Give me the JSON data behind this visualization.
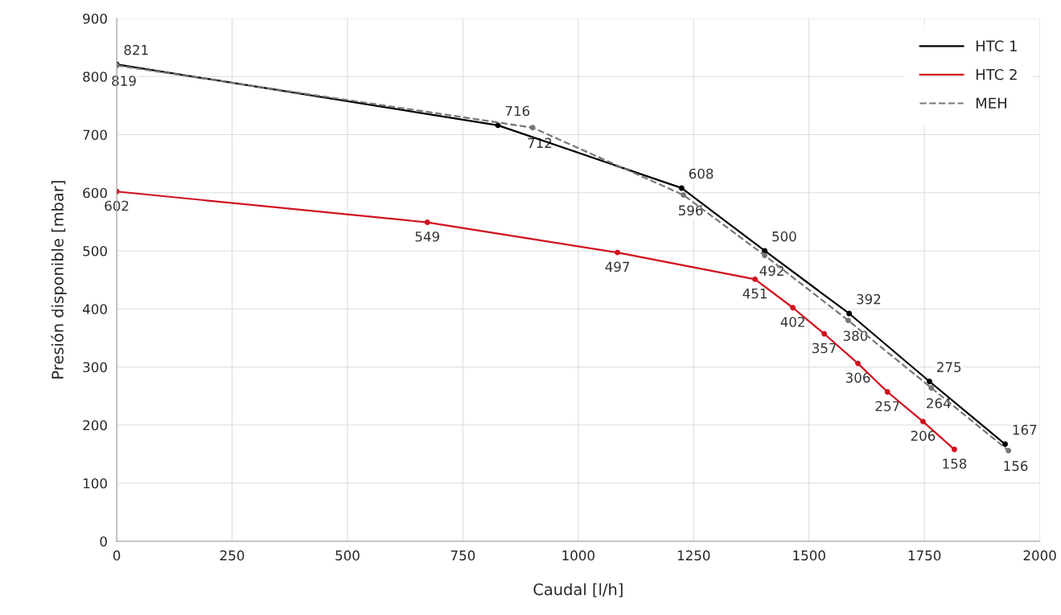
{
  "chart_data": {
    "type": "line",
    "xlabel": "Caudal [l/h]",
    "ylabel": "Presión disponible [mbar]",
    "xlim": [
      0,
      2000
    ],
    "xticks": [
      0,
      250,
      500,
      750,
      1000,
      1250,
      1500,
      1750,
      2000
    ],
    "ylim": [
      0,
      900
    ],
    "yticks": [
      0,
      100,
      200,
      300,
      400,
      500,
      600,
      700,
      800,
      900
    ],
    "grid": true,
    "legend": "top right",
    "marker": "circle",
    "data_labels": true,
    "series": [
      {
        "name": "HTC 1",
        "color": "#000000",
        "line_style": "solid",
        "x": [
          0,
          826,
          1224,
          1404,
          1587,
          1761,
          1925
        ],
        "values": [
          821,
          716,
          608,
          500,
          392,
          275,
          167
        ]
      },
      {
        "name": "HTC 2",
        "color": "#d0101e",
        "line_style": "solid",
        "x": [
          0,
          673,
          1085,
          1383,
          1465,
          1533,
          1606,
          1670,
          1747,
          1815
        ],
        "values": [
          602,
          549,
          497,
          451,
          402,
          357,
          306,
          257,
          206,
          158
        ]
      },
      {
        "name": "MEH",
        "color": "#777777",
        "line_style": "dashed",
        "x": [
          0,
          901,
          1228,
          1404,
          1585,
          1765,
          1932
        ],
        "values": [
          819,
          712,
          596,
          492,
          380,
          264,
          156
        ]
      }
    ]
  }
}
